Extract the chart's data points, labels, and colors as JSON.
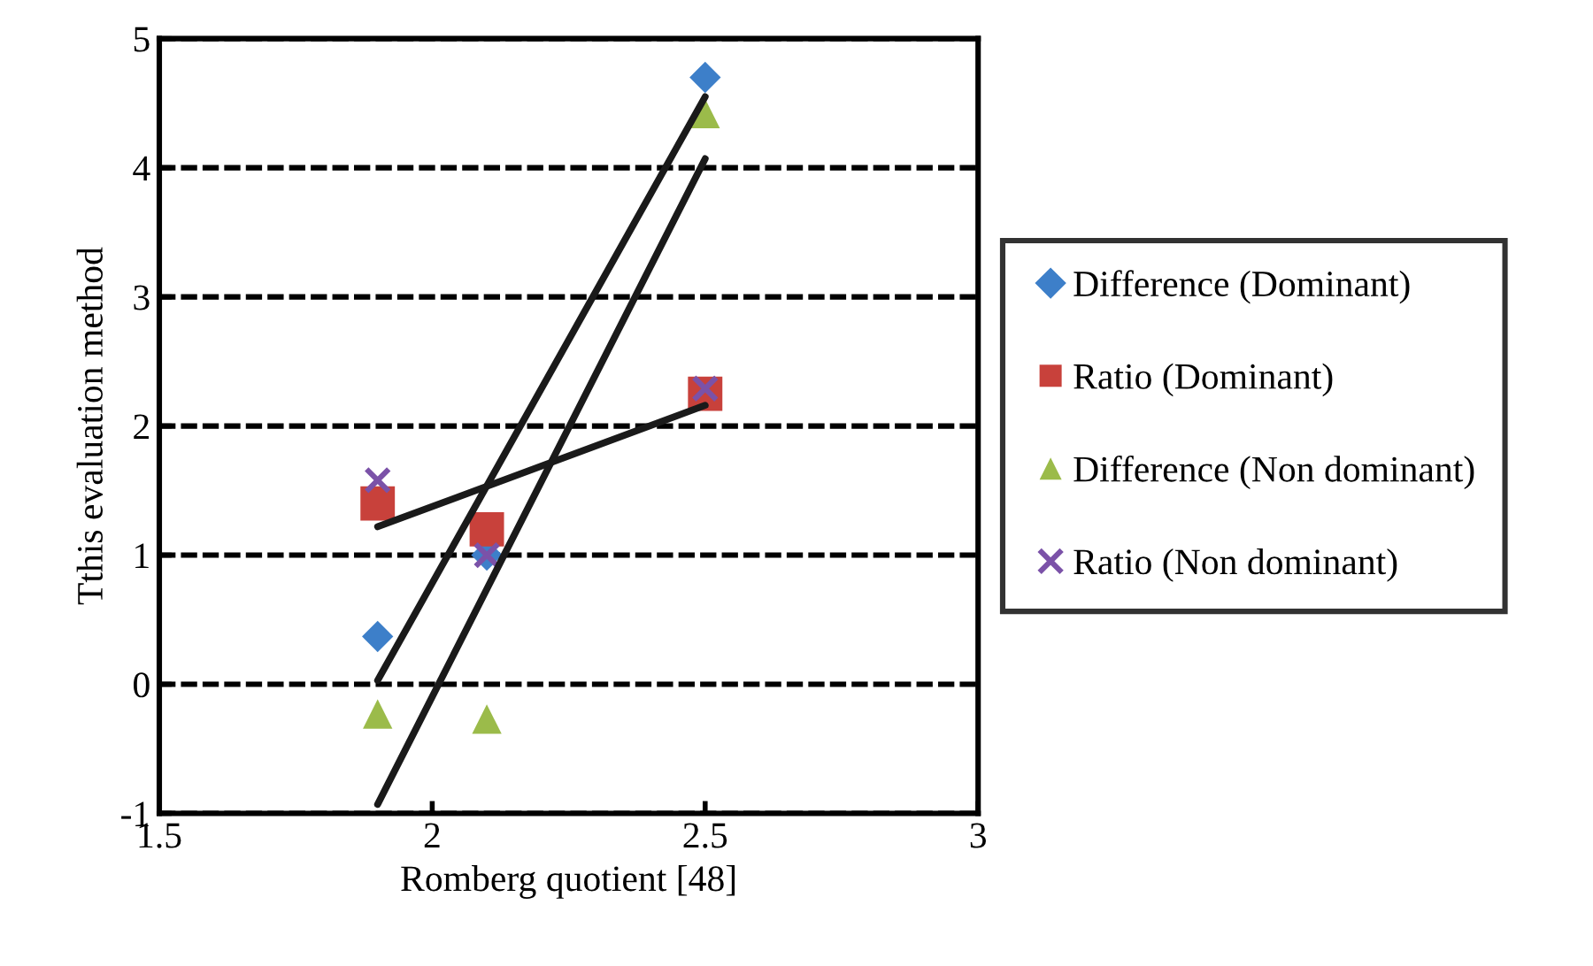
{
  "chart_data": {
    "type": "scatter",
    "xlabel": "Romberg quotient [48]",
    "ylabel": "Tthis evaluation method",
    "xlim": [
      1.5,
      3
    ],
    "xticks": [
      1.5,
      2,
      2.5,
      3
    ],
    "ylim": [
      -1,
      5
    ],
    "yticks": [
      -1,
      0,
      1,
      2,
      3,
      4,
      5
    ],
    "grid": "y",
    "legend": "right",
    "series": [
      {
        "name": "Difference (Dominant)",
        "color": "#3d7fc9",
        "marker": "diamond",
        "x": [
          1.9,
          2.1,
          2.5
        ],
        "values": [
          0.37,
          1.0,
          4.7
        ]
      },
      {
        "name": "Ratio (Dominant)",
        "color": "#c8413b",
        "marker": "square",
        "x": [
          1.9,
          2.1,
          2.5
        ],
        "values": [
          1.4,
          1.2,
          2.25
        ]
      },
      {
        "name": "Difference (Non dominant)",
        "color": "#9bbb4a",
        "marker": "triangle",
        "x": [
          1.9,
          2.1,
          2.5
        ],
        "values": [
          -0.23,
          -0.27,
          4.42
        ]
      },
      {
        "name": "Ratio (Non dominant)",
        "color": "#7b52a8",
        "marker": "cross",
        "x": [
          1.9,
          2.1,
          2.5
        ],
        "values": [
          1.58,
          1.0,
          2.29
        ]
      },
      {
        "type": "line",
        "color": "#1a1a1a",
        "x": [
          1.9,
          2.5
        ],
        "values": [
          0.03,
          4.55
        ]
      },
      {
        "type": "line",
        "color": "#1a1a1a",
        "x": [
          1.9,
          2.5
        ],
        "values": [
          -0.93,
          4.07
        ]
      },
      {
        "type": "line",
        "color": "#1a1a1a",
        "x": [
          1.9,
          2.5
        ],
        "values": [
          1.22,
          2.16
        ]
      }
    ]
  }
}
